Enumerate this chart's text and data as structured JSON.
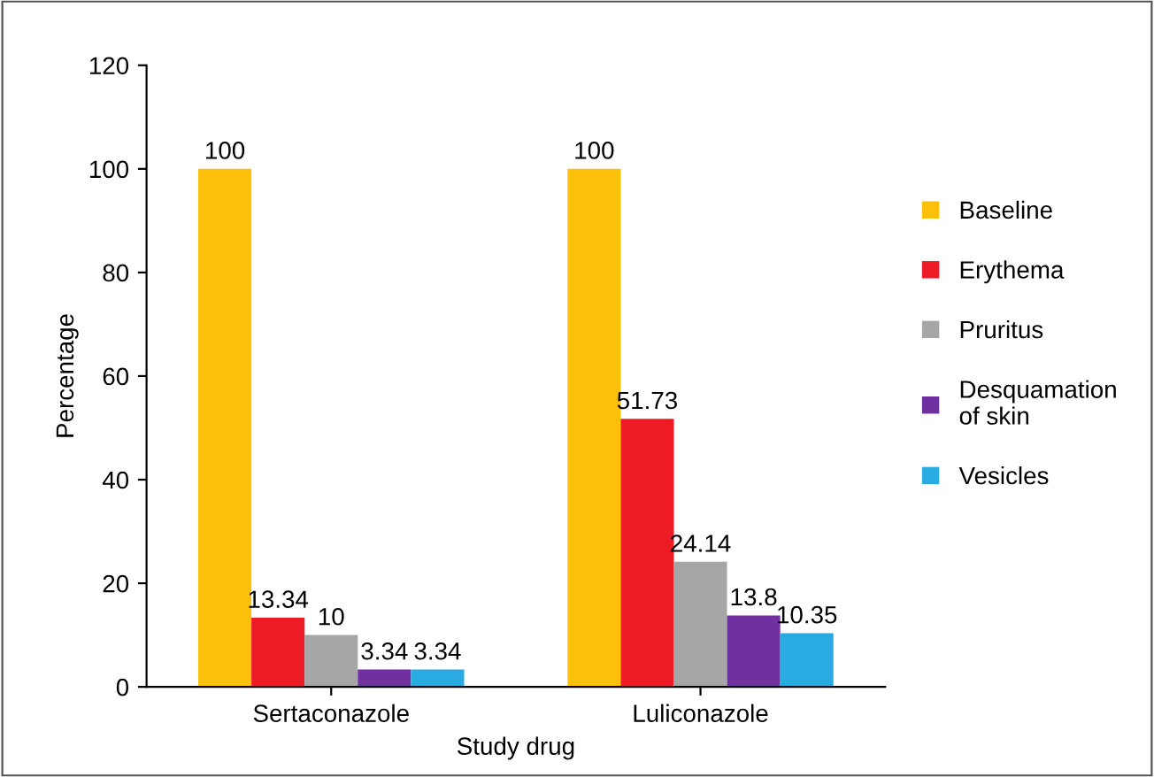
{
  "chart_data": {
    "type": "bar",
    "xlabel": "Study drug",
    "ylabel": "Percentage",
    "categories": [
      "Sertaconazole",
      "Luliconazole"
    ],
    "series": [
      {
        "name": "Baseline",
        "color": "#fcbf0a",
        "values": [
          100,
          100
        ]
      },
      {
        "name": "Erythema",
        "color": "#ed1c24",
        "values": [
          13.34,
          51.73
        ]
      },
      {
        "name": "Pruritus",
        "color": "#a6a6a6",
        "values": [
          10,
          24.14
        ]
      },
      {
        "name": "Desquamation of skin",
        "color": "#7030a0",
        "values": [
          3.34,
          13.8
        ]
      },
      {
        "name": "Vesicles",
        "color": "#29abe2",
        "values": [
          3.34,
          10.35
        ]
      }
    ],
    "ylim": [
      0,
      120
    ],
    "yticks": [
      0,
      20,
      40,
      60,
      80,
      100,
      120
    ],
    "data_labels": true,
    "grid": false,
    "legend": "right"
  }
}
